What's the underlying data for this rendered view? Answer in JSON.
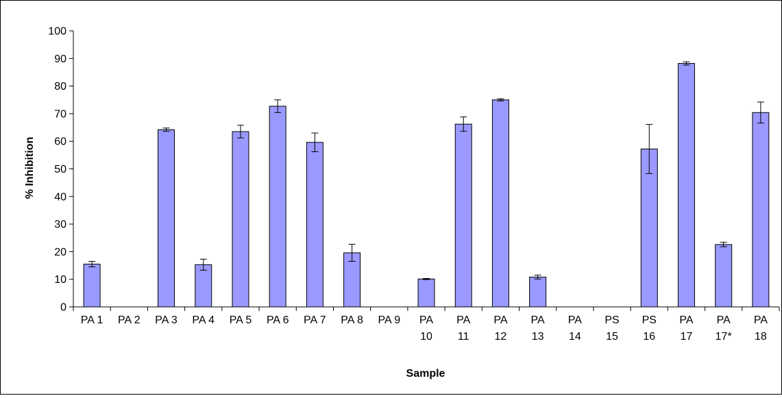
{
  "chart_data": {
    "type": "bar",
    "xlabel": "Sample",
    "ylabel": "% Inhibition",
    "ylim": [
      0,
      100
    ],
    "yticks": [
      0,
      10,
      20,
      30,
      40,
      50,
      60,
      70,
      80,
      90,
      100
    ],
    "grid": false,
    "legend": "none",
    "bar_color": "#9999ff",
    "categories": [
      [
        "PA 1"
      ],
      [
        "PA 2"
      ],
      [
        "PA 3"
      ],
      [
        "PA 4"
      ],
      [
        "PA 5"
      ],
      [
        "PA 6"
      ],
      [
        "PA 7"
      ],
      [
        "PA 8"
      ],
      [
        "PA 9"
      ],
      [
        "PA",
        "10"
      ],
      [
        "PA",
        "11"
      ],
      [
        "PA",
        "12"
      ],
      [
        "PA",
        "13"
      ],
      [
        "PA",
        "14"
      ],
      [
        "PS",
        "15"
      ],
      [
        "PS",
        "16"
      ],
      [
        "PA",
        "17"
      ],
      [
        "PA",
        "17*"
      ],
      [
        "PA",
        "18"
      ]
    ],
    "values": [
      15.5,
      0,
      64.2,
      15.3,
      63.5,
      72.7,
      59.6,
      19.6,
      0,
      10.1,
      66.2,
      75.0,
      10.8,
      0,
      0,
      57.2,
      88.2,
      22.6,
      70.4
    ],
    "error": [
      1.0,
      0,
      0.6,
      2.0,
      2.3,
      2.3,
      3.4,
      3.1,
      0,
      0.2,
      2.6,
      0.4,
      0.7,
      0,
      0,
      8.9,
      0.6,
      0.8,
      3.8
    ]
  }
}
